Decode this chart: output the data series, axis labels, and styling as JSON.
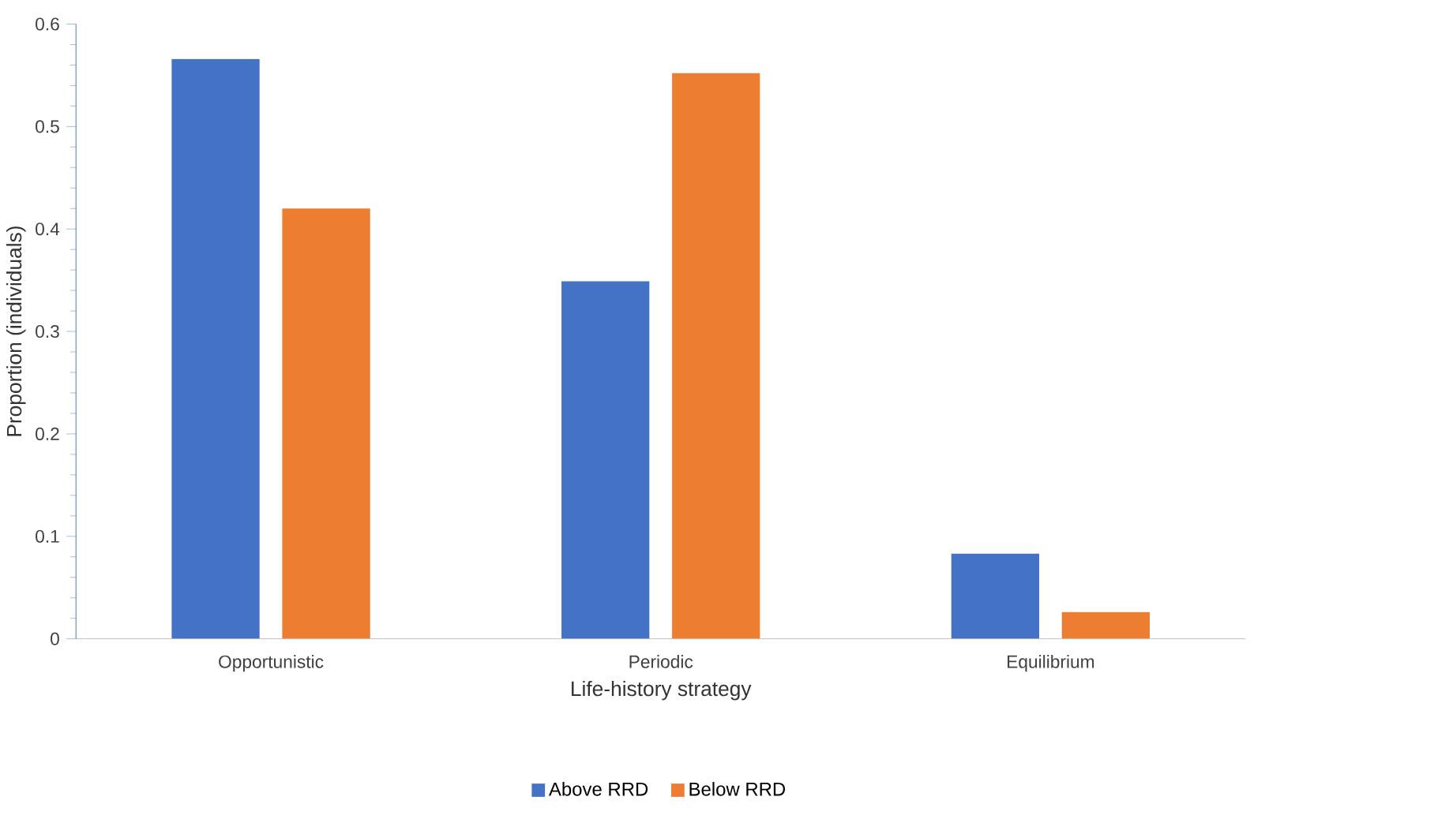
{
  "chart_data": {
    "type": "bar",
    "xlabel": "Life-history strategy",
    "ylabel": "Proportion (individuals)",
    "categories": [
      "Opportunistic",
      "Periodic",
      "Equilibrium"
    ],
    "series": [
      {
        "name": "Above RRD",
        "color": "#4472c4",
        "values": [
          0.566,
          0.349,
          0.083
        ]
      },
      {
        "name": "Below RRD",
        "color": "#ed7d31",
        "values": [
          0.42,
          0.552,
          0.026
        ]
      }
    ],
    "ylim": [
      0,
      0.6
    ],
    "yticks": [
      0,
      0.1,
      0.2,
      0.3,
      0.4,
      0.5,
      0.6
    ],
    "grid": false,
    "legend": "bottom"
  }
}
